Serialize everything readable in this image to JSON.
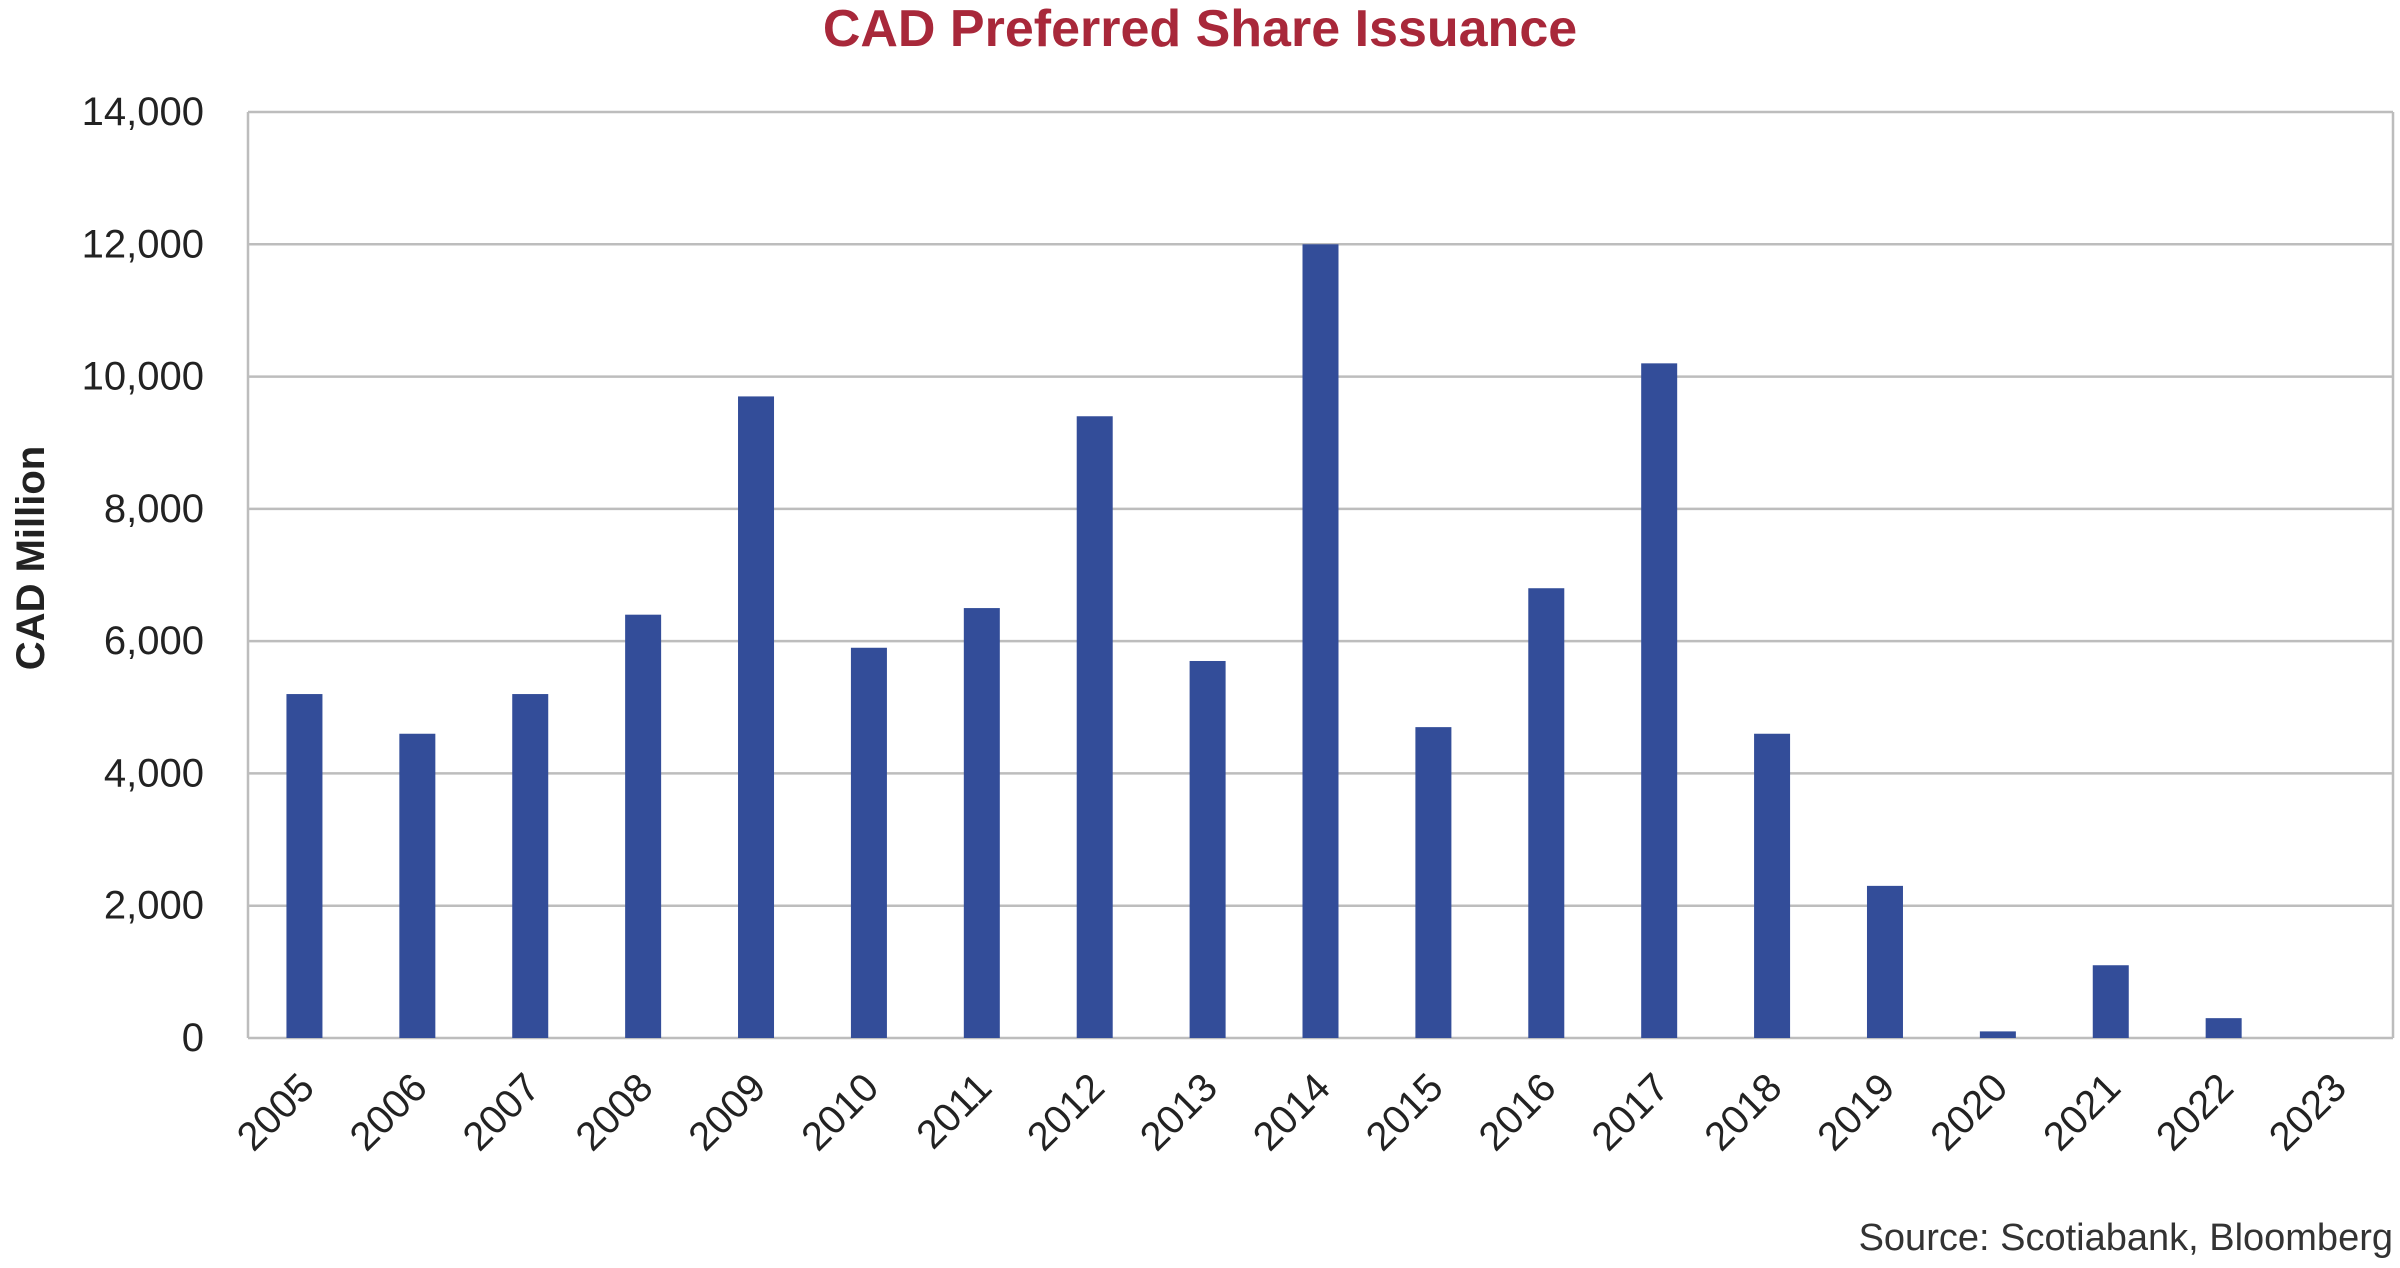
{
  "chart_data": {
    "type": "bar",
    "title": "CAD Preferred Share Issuance",
    "xlabel": "",
    "ylabel": "CAD Million",
    "ylim": [
      0,
      14000
    ],
    "yticks": [
      0,
      2000,
      4000,
      6000,
      8000,
      10000,
      12000,
      14000
    ],
    "ytick_labels": [
      "0",
      "2,000",
      "4,000",
      "6,000",
      "8,000",
      "10,000",
      "12,000",
      "14,000"
    ],
    "categories": [
      "2005",
      "2006",
      "2007",
      "2008",
      "2009",
      "2010",
      "2011",
      "2012",
      "2013",
      "2014",
      "2015",
      "2016",
      "2017",
      "2018",
      "2019",
      "2020",
      "2021",
      "2022",
      "2023"
    ],
    "values": [
      5200,
      4600,
      5200,
      6400,
      9700,
      5900,
      6500,
      9400,
      5700,
      12000,
      4700,
      6800,
      10200,
      4600,
      2300,
      100,
      1100,
      300,
      0
    ],
    "grid": true,
    "bar_color": "#334d99",
    "source": "Source: Scotiabank, Bloomberg"
  },
  "colors": {
    "title": "#a8283a",
    "bar": "#334d99",
    "grid": "#bdbdbd",
    "text": "#222222"
  }
}
